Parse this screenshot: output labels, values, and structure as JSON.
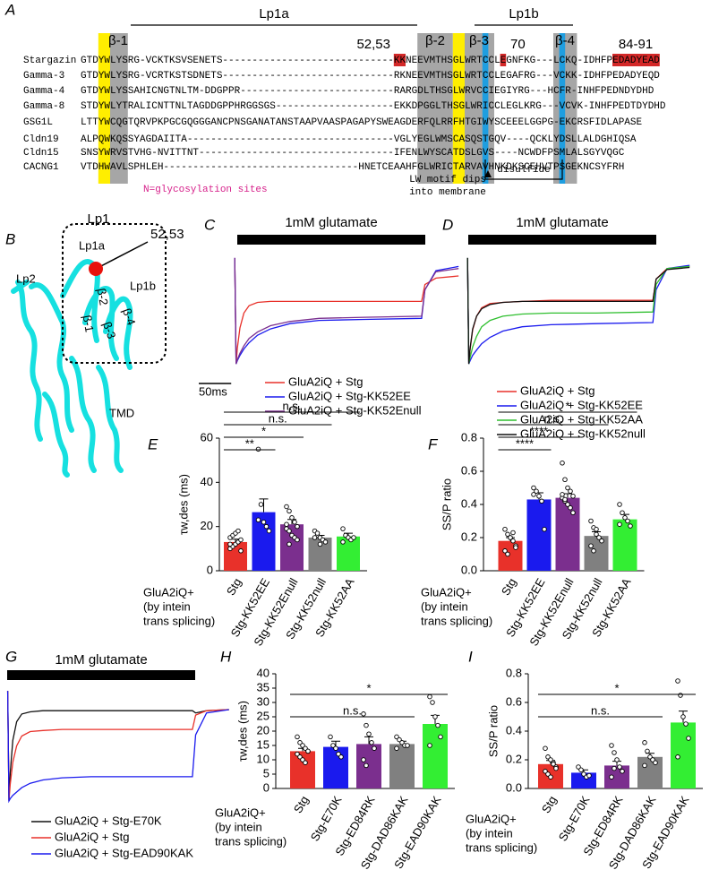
{
  "alignment": {
    "panel": "A",
    "labels": {
      "beta1": "β-1",
      "lp1a": "Lp1a",
      "beta2": "β-2",
      "beta3": "β-3",
      "lp1b": "Lp1b",
      "beta4": "β-4",
      "site1": "52,53",
      "site2": "70",
      "site3": "84-91"
    },
    "rows": [
      {
        "name": "Stargazin",
        "sequence": "GTDYWLYSRG-VCKTKSVSENETS-----------------------------KKNEEVMTHSGLWRTCCLEGNFKG---LCKQ-IDHFPEDADYEAD"
      },
      {
        "name": "Gamma-3",
        "sequence": "GTDYWLYSRG-VCRTKSTSDNETS-----------------------------RKNEEVMTHSGLWRTCCLEGAFRG---VCKK-IDHFPEDADYEQD"
      },
      {
        "name": "Gamma-4",
        "sequence": "GTDYWLYSSAHICNGTNLTM-DDGPPR--------------------------RARGDLTHSGLWRVCCIEGIYRG---HCFR-INHFPEDNDYDHD"
      },
      {
        "name": "Gamma-8",
        "sequence": "STDYWLYTRALICNTTNLTAGDDGPPHRGGSGS--------------------EKKDPGGLTHSGLWRICCLEGLKRG---VCVK-INHFPEDTDYDHD"
      },
      {
        "name": "GSG1L",
        "sequence": "LTTYWCQGTQRVPKPGCGQGGGANCPNSGANATANSTAAPVAASPAGAPYSWEAGDERFQLRRFHTGIWYSCEEELGGPG-EKCRSFIDLAPASE"
      },
      {
        "name": "Cldn19",
        "sequence": "ALPQWKQSSYAGDAIITA-----------------------------------VGLYEGLWMSCASQSTGQV----QCKLYDSLLALDGHIQSA"
      },
      {
        "name": "Cldn15",
        "sequence": "SNSYWRVSTVHG-NVITTNT---------------------------------IFENLWYSCATDSLGVS----NCWDFPSMLALSGYVQGC"
      },
      {
        "name": "CACNG1",
        "sequence": "VTDHWAVLSPHLEH---------------------------------HNETCEAAHFGLWRICTARVAVHNKDKSCEHVTPSGEKNCSYFRH"
      }
    ],
    "legend": "N=glycosylation sites",
    "motif_note": [
      "LW motif dips",
      "into membrane"
    ],
    "disulfide": "disulfide"
  },
  "structure": {
    "panel": "B",
    "labels": {
      "lp1": "Lp1",
      "site": "52,53",
      "lp1a": "Lp1a",
      "lp1b": "Lp1b",
      "lp2": "Lp2",
      "tmd": "TMD",
      "beta1": "β-1",
      "beta2": "β-2",
      "beta3": "β-3",
      "beta4": "β-4"
    }
  },
  "chart_data": [
    {
      "type": "line",
      "panel": "C",
      "stimulus": "1mM glutamate",
      "x": [
        0,
        2,
        4,
        8,
        14,
        22,
        35,
        55,
        85,
        130,
        200,
        288,
        293,
        310,
        345
      ],
      "xlim": [
        -10,
        335
      ],
      "ylim": [
        -1.05,
        0.05
      ],
      "scale_bar": {
        "value": 50,
        "label": "50ms"
      },
      "series": [
        {
          "name": "GluA2iQ + Stg",
          "color": "#e8312a",
          "values": [
            0,
            -1,
            -0.85,
            -0.66,
            -0.52,
            -0.45,
            -0.42,
            -0.41,
            -0.41,
            -0.41,
            -0.41,
            -0.41,
            -0.25,
            -0.19,
            -0.17
          ]
        },
        {
          "name": "GluA2iQ + Stg-KK52EE",
          "color": "#1a1aee",
          "values": [
            0,
            -1,
            -0.97,
            -0.92,
            -0.86,
            -0.8,
            -0.73,
            -0.67,
            -0.62,
            -0.59,
            -0.58,
            -0.57,
            -0.3,
            -0.12,
            -0.08
          ]
        },
        {
          "name": "GluA2iQ + Stg-KK52Enull",
          "color": "#7b2f8e",
          "values": [
            0,
            -1,
            -0.96,
            -0.9,
            -0.83,
            -0.76,
            -0.7,
            -0.64,
            -0.6,
            -0.57,
            -0.56,
            -0.55,
            -0.3,
            -0.13,
            -0.1
          ]
        }
      ]
    },
    {
      "type": "line",
      "panel": "D",
      "stimulus": "1mM glutamate",
      "x": [
        0,
        2,
        4,
        8,
        14,
        22,
        35,
        55,
        85,
        130,
        200,
        288,
        293,
        310,
        345
      ],
      "xlim": [
        -10,
        310
      ],
      "ylim": [
        -1.05,
        0.05
      ],
      "series": [
        {
          "name": "GluA2iQ + Stg",
          "color": "#e8312a",
          "values": [
            0,
            -1,
            -0.86,
            -0.68,
            -0.55,
            -0.47,
            -0.43,
            -0.42,
            -0.41,
            -0.4,
            -0.4,
            -0.4,
            -0.2,
            -0.1,
            -0.08
          ]
        },
        {
          "name": "GluA2iQ + Stg-KK52EE",
          "color": "#1a1aee",
          "values": [
            0,
            -1,
            -0.97,
            -0.92,
            -0.87,
            -0.81,
            -0.75,
            -0.69,
            -0.65,
            -0.63,
            -0.62,
            -0.61,
            -0.3,
            -0.1,
            -0.07
          ]
        },
        {
          "name": "GluA2iQ + Stg-KK52AA",
          "color": "#2fbf2f",
          "values": [
            0,
            -1,
            -0.94,
            -0.84,
            -0.74,
            -0.65,
            -0.59,
            -0.55,
            -0.53,
            -0.52,
            -0.52,
            -0.51,
            -0.25,
            -0.1,
            -0.08
          ]
        },
        {
          "name": "GluA2iQ + Stg-KK52null",
          "color": "#111111",
          "values": [
            0,
            -1,
            -0.85,
            -0.67,
            -0.55,
            -0.48,
            -0.44,
            -0.42,
            -0.41,
            -0.41,
            -0.41,
            -0.41,
            -0.2,
            -0.11,
            -0.09
          ]
        }
      ]
    },
    {
      "type": "bar",
      "panel": "E",
      "ylabel": "τw,des (ms)",
      "categories": [
        "Stg",
        "Stg-KK52EE",
        "Stg-KK52Enull",
        "Stg-KK52null",
        "Stg-KK52AA"
      ],
      "values": [
        13,
        26.5,
        21,
        15,
        15.5
      ],
      "errors": [
        1.3,
        6,
        2.2,
        1,
        1.5
      ],
      "colors": [
        "#e8312a",
        "#1a1aee",
        "#7b2f8e",
        "#808080",
        "#33ee33"
      ],
      "points": [
        [
          10,
          11,
          12,
          13,
          14,
          15,
          16,
          17,
          18,
          9,
          12
        ],
        [
          55,
          30,
          22,
          20,
          18,
          23
        ],
        [
          29,
          27,
          24,
          22,
          20,
          19,
          18,
          16,
          15,
          14,
          21,
          12
        ],
        [
          18,
          16,
          15,
          14,
          13,
          15,
          17,
          12
        ],
        [
          19,
          16,
          15,
          14,
          15,
          13
        ]
      ],
      "ylim": [
        0,
        60
      ],
      "yticks": [
        0,
        20,
        40,
        60
      ],
      "group_label": [
        "GluA2iQ+",
        "(by intein",
        "trans splicing)"
      ],
      "significance": [
        {
          "from": 0,
          "to": 4,
          "label": "n.s."
        },
        {
          "from": 0,
          "to": 3,
          "label": "n.s."
        },
        {
          "from": 0,
          "to": 2,
          "label": "*"
        },
        {
          "from": 0,
          "to": 1,
          "label": "**"
        }
      ]
    },
    {
      "type": "bar",
      "panel": "F",
      "ylabel": "SS/P ratio",
      "categories": [
        "Stg",
        "Stg-KK52EE",
        "Stg-KK52Enull",
        "Stg-KK52null",
        "Stg-KK52AA"
      ],
      "values": [
        0.18,
        0.43,
        0.44,
        0.21,
        0.31
      ],
      "errors": [
        0.02,
        0.04,
        0.025,
        0.025,
        0.03
      ],
      "colors": [
        "#e8312a",
        "#1a1aee",
        "#7b2f8e",
        "#808080",
        "#33ee33"
      ],
      "points": [
        [
          0.25,
          0.22,
          0.2,
          0.18,
          0.15,
          0.12,
          0.1,
          0.2,
          0.23,
          0.14
        ],
        [
          0.5,
          0.48,
          0.45,
          0.42,
          0.25,
          0.46
        ],
        [
          0.65,
          0.55,
          0.5,
          0.48,
          0.45,
          0.44,
          0.42,
          0.4,
          0.38,
          0.35,
          0.46,
          0.43
        ],
        [
          0.3,
          0.26,
          0.22,
          0.2,
          0.18,
          0.15,
          0.12,
          0.25
        ],
        [
          0.4,
          0.35,
          0.32,
          0.3,
          0.27,
          0.28
        ]
      ],
      "ylim": [
        0,
        0.8
      ],
      "yticks": [
        {
          "value": 0,
          "label": "0.0"
        },
        0.2,
        0.4,
        0.6,
        0.8
      ],
      "group_label": [
        "GluA2iQ+",
        "(by intein",
        "trans splicing)"
      ],
      "significance": [
        {
          "from": 0,
          "to": 4,
          "label": "*"
        },
        {
          "from": 0,
          "to": 3,
          "label": "n.s."
        },
        {
          "from": 0,
          "to": 2,
          "label": "****"
        },
        {
          "from": 0,
          "to": 1,
          "label": "****"
        }
      ]
    },
    {
      "type": "line",
      "panel": "G",
      "stimulus": "1mM glutamate",
      "x": [
        0,
        2,
        4,
        8,
        14,
        22,
        35,
        55,
        85,
        130,
        200,
        288,
        293,
        310,
        345
      ],
      "xlim": [
        -5,
        330
      ],
      "ylim": [
        -1.05,
        0.05
      ],
      "series": [
        {
          "name": "GluA2iQ + Stg-E70K",
          "color": "#111111",
          "values": [
            0,
            -1,
            -0.75,
            -0.45,
            -0.28,
            -0.21,
            -0.19,
            -0.18,
            -0.18,
            -0.18,
            -0.18,
            -0.18,
            -0.2,
            -0.18,
            -0.17
          ]
        },
        {
          "name": "GluA2iQ + Stg",
          "color": "#e8312a",
          "values": [
            0,
            -1,
            -0.85,
            -0.65,
            -0.5,
            -0.41,
            -0.37,
            -0.36,
            -0.35,
            -0.35,
            -0.35,
            -0.35,
            -0.22,
            -0.18,
            -0.17
          ]
        },
        {
          "name": "GluA2iQ + Stg-EAD90KAK",
          "color": "#1a1aee",
          "values": [
            0,
            -1,
            -0.98,
            -0.95,
            -0.92,
            -0.88,
            -0.84,
            -0.81,
            -0.79,
            -0.78,
            -0.78,
            -0.78,
            -0.4,
            -0.2,
            -0.17
          ]
        }
      ]
    },
    {
      "type": "bar",
      "panel": "H",
      "ylabel": "τw,des (ms)",
      "categories": [
        "Stg",
        "Stg-E70K",
        "Stg-ED84RK",
        "Stg-DAD86KAK",
        "Stg-EAD90KAK"
      ],
      "values": [
        13,
        14.5,
        15.5,
        15.5,
        22.5
      ],
      "errors": [
        1,
        2,
        2.5,
        1,
        3
      ],
      "colors": [
        "#e8312a",
        "#1a1aee",
        "#7b2f8e",
        "#808080",
        "#33ee33"
      ],
      "points": [
        [
          18,
          16,
          15,
          14,
          13,
          12,
          11,
          10,
          9,
          13
        ],
        [
          18,
          15,
          14,
          12,
          11
        ],
        [
          26,
          22,
          19,
          16,
          14,
          10,
          8
        ],
        [
          18,
          17,
          16,
          15,
          15,
          14
        ],
        [
          32,
          30,
          25,
          22,
          18,
          15
        ]
      ],
      "ylim": [
        0,
        40
      ],
      "yticks": [
        0,
        5,
        10,
        15,
        20,
        25,
        30,
        35,
        40
      ],
      "group_label": [
        "GluA2iQ+",
        "(by intein",
        "trans splicing)"
      ],
      "significance": [
        {
          "from": 0,
          "to": 4,
          "label": "*"
        },
        {
          "from": 0,
          "to": 3,
          "label": "n.s."
        }
      ]
    },
    {
      "type": "bar",
      "panel": "I",
      "ylabel": "SS/P ratio",
      "categories": [
        "Stg",
        "Stg-E70K",
        "Stg-ED84RK",
        "Stg-DAD86KAK",
        "Stg-EAD90KAK"
      ],
      "values": [
        0.17,
        0.11,
        0.16,
        0.22,
        0.46
      ],
      "errors": [
        0.025,
        0.02,
        0.03,
        0.025,
        0.08
      ],
      "colors": [
        "#e8312a",
        "#1a1aee",
        "#7b2f8e",
        "#808080",
        "#33ee33"
      ],
      "points": [
        [
          0.28,
          0.22,
          0.2,
          0.18,
          0.15,
          0.12,
          0.1,
          0.08,
          0.17,
          0.14
        ],
        [
          0.15,
          0.13,
          0.1,
          0.08,
          0.09
        ],
        [
          0.3,
          0.25,
          0.2,
          0.15,
          0.12,
          0.08,
          0.14
        ],
        [
          0.32,
          0.26,
          0.22,
          0.2,
          0.18,
          0.16
        ],
        [
          0.75,
          0.65,
          0.5,
          0.45,
          0.35,
          0.22
        ]
      ],
      "ylim": [
        0,
        0.8
      ],
      "yticks": [
        {
          "value": 0,
          "label": "0.0"
        },
        0.2,
        0.4,
        0.6,
        0.8
      ],
      "group_label": [
        "GluA2iQ+",
        "(by intein",
        "trans splicing)"
      ],
      "significance": [
        {
          "from": 0,
          "to": 4,
          "label": "*"
        },
        {
          "from": 0,
          "to": 3,
          "label": "n.s."
        }
      ]
    }
  ]
}
